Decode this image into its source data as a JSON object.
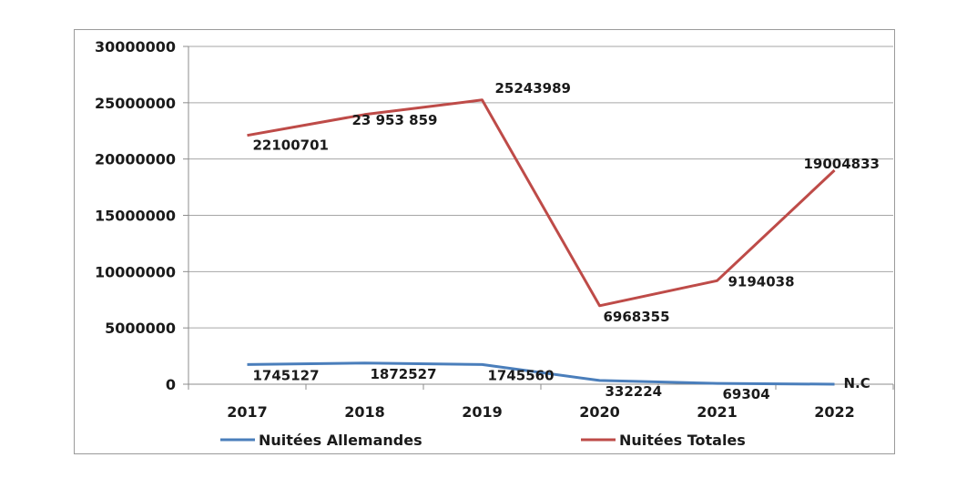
{
  "chart_data": {
    "type": "line",
    "categories": [
      "2017",
      "2018",
      "2019",
      "2020",
      "2021",
      "2022"
    ],
    "ylim": [
      0,
      30000000
    ],
    "y_ticks": [
      "30000000",
      "25000000",
      "20000000",
      "15000000",
      "10000000",
      "5000000",
      "0"
    ],
    "y_tick_values": [
      30000000,
      25000000,
      20000000,
      15000000,
      10000000,
      5000000,
      0
    ],
    "grid": true,
    "legend_position": "bottom",
    "series": [
      {
        "name": "Nuitées Allemandes",
        "color": "#4a7ebb",
        "values": [
          1745127,
          1872527,
          1745560,
          332224,
          69304,
          0
        ],
        "labels": [
          "1745127",
          "1872527",
          "1745560",
          "332224",
          "69304",
          "N.C"
        ]
      },
      {
        "name": "Nuitées Totales",
        "color": "#be4b48",
        "values": [
          22100701,
          23953859,
          25243989,
          6968355,
          9194038,
          19004833
        ],
        "labels": [
          "22100701",
          "23 953 859",
          "25243989",
          "6968355",
          "9194038",
          "19004833"
        ]
      }
    ]
  }
}
